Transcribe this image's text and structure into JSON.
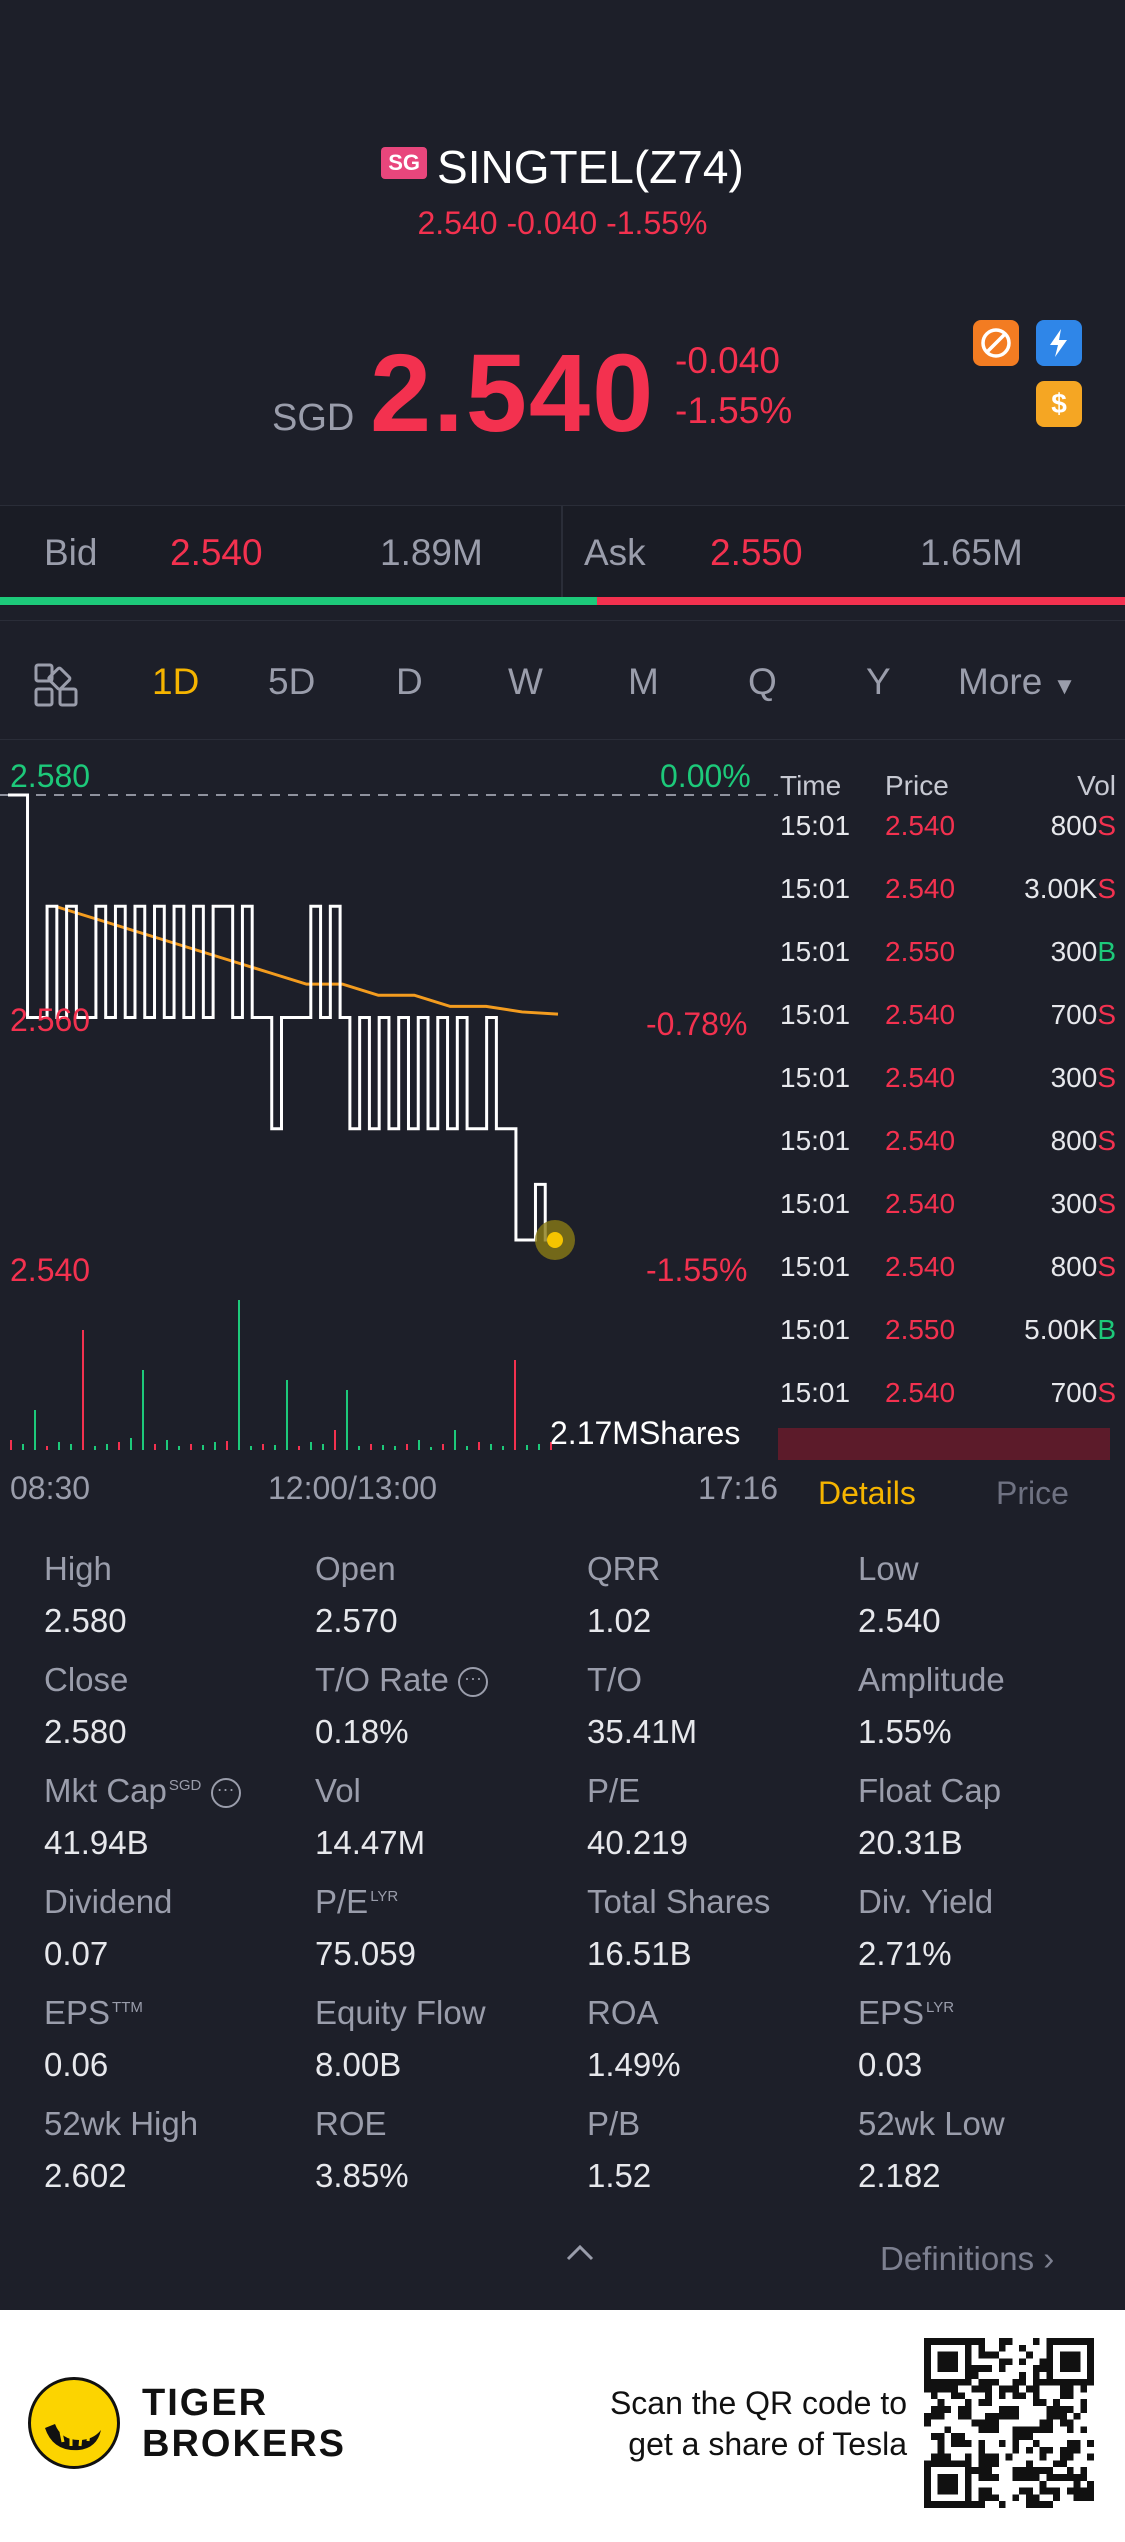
{
  "header": {
    "exchange_badge": "SG",
    "title": "SINGTEL(Z74)",
    "subline": "2.540 -0.040 -1.55%",
    "currency": "SGD",
    "price": "2.540",
    "change": "-0.040",
    "change_pct": "-1.55%",
    "badge_icons": [
      "no-short-icon",
      "lightning-icon",
      "dollar-icon"
    ]
  },
  "bidask": {
    "bid_label": "Bid",
    "bid_price": "2.540",
    "bid_size": "1.89M",
    "ask_label": "Ask",
    "ask_price": "2.550",
    "ask_size": "1.65M",
    "bid_fraction": 0.53
  },
  "tabs": {
    "items": [
      "1D",
      "5D",
      "D",
      "W",
      "M",
      "Q",
      "Y"
    ],
    "active": "1D",
    "more": "More"
  },
  "chart": {
    "y_high": "2.580",
    "y_mid": "2.560",
    "y_low": "2.540",
    "pct_high": "0.00%",
    "pct_mid": "-0.78%",
    "pct_low": "-1.55%",
    "volume_label": "2.17MShares",
    "x_start": "08:30",
    "x_mid": "12:00/13:00",
    "x_end": "17:16"
  },
  "chart_data": {
    "type": "line",
    "ylim": [
      2.54,
      2.58
    ],
    "series": [
      {
        "values": [
          2.58,
          2.58,
          2.56,
          2.56,
          2.57,
          2.56,
          2.57,
          2.56,
          2.56,
          2.57,
          2.56,
          2.57,
          2.56,
          2.57,
          2.56,
          2.57,
          2.56,
          2.57,
          2.56,
          2.57,
          2.56,
          2.57,
          2.57,
          2.56,
          2.57,
          2.56,
          2.56,
          2.55,
          2.56,
          2.56,
          2.56,
          2.57,
          2.56,
          2.57,
          2.56,
          2.55,
          2.56,
          2.55,
          2.56,
          2.55,
          2.56,
          2.55,
          2.56,
          2.55,
          2.56,
          2.55,
          2.56,
          2.55,
          2.55,
          2.56,
          2.55,
          2.55,
          2.54,
          2.54,
          2.545,
          2.54,
          2.54
        ]
      },
      {
        "values": [
          2.57,
          2.569,
          2.568,
          2.567,
          2.566,
          2.565,
          2.564,
          2.563,
          2.563,
          2.562,
          2.562,
          2.561,
          2.561,
          2.5605,
          2.5603
        ]
      }
    ]
  },
  "ticks": {
    "headers": [
      "Time",
      "Price",
      "Vol"
    ],
    "rows": [
      {
        "time": "15:01",
        "price": "2.540",
        "vol": "800",
        "side": "S"
      },
      {
        "time": "15:01",
        "price": "2.540",
        "vol": "3.00K",
        "side": "S"
      },
      {
        "time": "15:01",
        "price": "2.550",
        "vol": "300",
        "side": "B"
      },
      {
        "time": "15:01",
        "price": "2.540",
        "vol": "700",
        "side": "S"
      },
      {
        "time": "15:01",
        "price": "2.540",
        "vol": "300",
        "side": "S"
      },
      {
        "time": "15:01",
        "price": "2.540",
        "vol": "800",
        "side": "S"
      },
      {
        "time": "15:01",
        "price": "2.540",
        "vol": "300",
        "side": "S"
      },
      {
        "time": "15:01",
        "price": "2.540",
        "vol": "800",
        "side": "S"
      },
      {
        "time": "15:01",
        "price": "2.550",
        "vol": "5.00K",
        "side": "B"
      },
      {
        "time": "15:01",
        "price": "2.540",
        "vol": "700",
        "side": "S"
      }
    ]
  },
  "panel_tabs": {
    "details": "Details",
    "price": "Price"
  },
  "stats": [
    {
      "label": "High",
      "value": "2.580"
    },
    {
      "label": "Open",
      "value": "2.570"
    },
    {
      "label": "QRR",
      "value": "1.02"
    },
    {
      "label": "Low",
      "value": "2.540"
    },
    {
      "label": "Close",
      "value": "2.580"
    },
    {
      "label": "T/O Rate",
      "value": "0.18%"
    },
    {
      "label": "T/O",
      "value": "35.41M"
    },
    {
      "label": "Amplitude",
      "value": "1.55%"
    },
    {
      "label": "Mkt Cap",
      "sup": "SGD",
      "value": "41.94B"
    },
    {
      "label": "Vol",
      "value": "14.47M"
    },
    {
      "label": "P/E",
      "value": "40.219"
    },
    {
      "label": "Float Cap",
      "value": "20.31B"
    },
    {
      "label": "Dividend",
      "value": "0.07"
    },
    {
      "label": "P/E",
      "sup": "LYR",
      "value": "75.059"
    },
    {
      "label": "Total Shares",
      "value": "16.51B"
    },
    {
      "label": "Div. Yield",
      "value": "2.71%"
    },
    {
      "label": "EPS",
      "sup": "TTM",
      "value": "0.06"
    },
    {
      "label": "Equity Flow",
      "value": "8.00B"
    },
    {
      "label": "ROA",
      "value": "1.49%"
    },
    {
      "label": "EPS",
      "sup": "LYR",
      "value": "0.03"
    },
    {
      "label": "52wk High",
      "value": "2.602"
    },
    {
      "label": "ROE",
      "value": "3.85%"
    },
    {
      "label": "P/B",
      "value": "1.52"
    },
    {
      "label": "52wk Low",
      "value": "2.182"
    }
  ],
  "definitions": "Definitions",
  "footer": {
    "brand_line1": "TIGER",
    "brand_line2": "BROKERS",
    "scan_line1": "Scan the QR code to",
    "scan_line2": "get a share of Tesla"
  },
  "colors": {
    "up": "#1dc97a",
    "down": "#f3314f",
    "accent": "#f5b400",
    "bg": "#1d1f29"
  }
}
